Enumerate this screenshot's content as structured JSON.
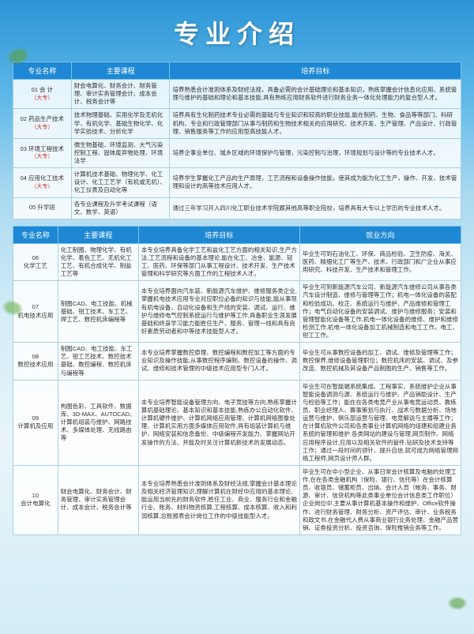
{
  "page_title": "专业介绍",
  "table1": {
    "headers": [
      "专业名称",
      "主要课程",
      "培养目标"
    ],
    "rows": [
      {
        "num": "01",
        "name": "会 计",
        "tag": "（大专）",
        "course": "财会电算化、财务会计、财务管理、审计实务管理会计、成本会计、税务会计等",
        "goal": "培养熟悉会计准则体系及财经法规，具备必需的会计基础理论和基本知识，熟练掌握会计信息化应用、系统管理与维护的基础和理论和基本技能,具有熟练应用财务软件进行财务业务一体化处理能力的复合型人才。"
      },
      {
        "num": "02",
        "name": "药品生产技术",
        "tag": "（大专）",
        "course": "技术物理基础、实用化学及无机化学、有机化学、基础生物化学、化学实验技术、分析化学",
        "goal": "培养具有生化制药技术专业必需的基础与专业知识和较高的职业技能,能在制药、生物、食品等等部门、科研机构、专业和行政管理部门从事与制药和生物技术相关的应用研究、技术开发、生产管理、产品设计、行政管理、销售服务等工作的应用型高技能人才。"
      },
      {
        "num": "03",
        "name": "环境工程技术",
        "tag": "（大专）",
        "course": "微生物基础、环境监测、大气污染控制工程、固体废弃物处理、环境法学",
        "goal": "培养企事业单位、城乡区域的环境保护与管理，污染控制与治理，环境规划与设计等的专业技术人才。"
      },
      {
        "num": "04",
        "name": "应用化工技术",
        "tag": "（大专）",
        "course": "计算机技术基础、物理化学、化工设计、化工工艺学（有机或无机）、化工仪表及自动化等",
        "goal": "培养学生掌握化工产品的生产原理，工艺流程和设备操作技能，使其成为能为化工生产，操作、开发、技术管理和设计的高等技术应用人才。"
      },
      {
        "num": "05",
        "name": "升学班",
        "tag": "",
        "course": "各专业课程及升学考试课程（语文、数学、英语）",
        "goal": "通过三年学习开入四川化工职业技术学院跟其他高等职业院校，培养具有大专以上学历的专业技术人才。"
      }
    ]
  },
  "table2": {
    "headers": [
      "专业名称",
      "主要课程",
      "培养目标",
      "就业方向"
    ],
    "rows": [
      {
        "num": "06",
        "name": "化学工艺",
        "course": "化工制图、物理化学、有机化学、着色工艺、无机化工工艺、有机合成化学、制盐工艺等",
        "goal": "本专业培养具备化学工艺和盐化工艺方面的相关知识,生产方法,工艺流程和设备的基本理论,能在化工、冶金、能源、轻工、医药、环保等部门从事工程设计、技术开发、生产技术管理和科学研究等方面工作的工程技术人才。",
        "job": "毕业生可到石油化工、环保、商品检验、卫生防疫、海关、医药、精细化工厂等生产、技术、行政部门和广企业从事应用研究、科技开发、生产技术和管理工作。"
      },
      {
        "num": "07",
        "name": "机电技术应用",
        "course": "制图CAD、电工技能、机械基础、钳工技术、车工艺、焊工艺、数控机床编程等",
        "goal": "本专业培养面向汽车装、新能源汽车维护、维修服务类企业,掌握机电技术应用专业对应职位必备的知识与技能,能从事现有机电设备、自动化设备和生产线的安装、调试、运行、维护与维修电气控制系统运行与维护等工作,具备职业生涯发展基础和终身学习能力能胜任生产、服务、管理一线和具有良好素质劳动者和中等技术技能型人才。",
        "job": "毕业生可到新能源汽车公司、新能源汽车维修公司从事各类汽车设计制造、维修与管理等工作；机电一体化设备的装配和检验成功、校正、系统运行与维护、产品维修和管理工作；电气自动化设备的安装调试、维护与维修服务；安装和管理智能化设备等工作,机电一体化设备的维修、维护和维修检测工作,机电一体化设备加工机械制造和电工工作。电工、钳工工作。"
      },
      {
        "num": "08",
        "name": "数控技术应用",
        "course": "制图CAD、电工技能、车工艺、钳工艺技术、数控技术基础、数控编程、数控机床与编程等",
        "goal": "本专业培养掌握数控原理、数控编程和数控加工等方面的专业知识及操作技能,从事数控程序编制、数控设备的操作、调试、维修和技术管理的中级技术应用型专门人才。",
        "job": "毕业生可从事数控设备的加工、调试、维修及管理等工作；数控保养,维修设备管理职位；数控机床的安装、调试、及参改造、数控机械及其设备产品制图的生产、销售等工作。"
      },
      {
        "num": "09",
        "name": "计算机及应用",
        "course": "构图色彩、工具软件、数据库、3D-MAX、AUTOCAD、计算机组装与维护、网路技术、多媒体处理、无线路由等",
        "goal": "本专业培养智能设备管理方向、电子竞技等方向,熟练掌握计算机基础理论、基本知识和基本技能,熟练办公自动化软件、计算机硬件维护、计算机网络应用管理、计算机网络图像处理、计算机实用方面多媒体应用软件,具有组装计算机与维护、网络安装和信息备份、中级编程开发能力、掌握网站开发操作的方法、并能及时关注计算机新技术的发展动态。",
        "job": "毕业生可在智能端系统集成、工程事实、系统维护企业从事智能设备调测与源、系统运行与维护、产品销助设计、生产与检验等工作；能在在各类电竞产业从事电竞运动员、教练员、职业经理人、赛事策划与执行、战术与数据分析、场地运营与维护、俱乐部运营与管理、电竞解说与主播等工作；在计算机软件公司和各类事业计算机网络的组建和组建业务系统的管理和维护,各类网站的建设与管理,网页制作、网络应用程序设计,应用以及相关软件的管件,钻研及技术支持等工作；通过一段时间的领针、提升自信,就可成为网络管理网络工程师,网页设计师人群。"
      },
      {
        "num": "10",
        "name": "会计电算化",
        "course": "财会电算化、财务会计、财务管理、审计实务管理会计、成本会计、税务会计等",
        "goal": "本专业培养熟悉会计准则体系及财经法规,掌握会计基本理论及相关经济管理知识,理解计算机在财经中应用的基本理论,能运用当前先的财务软件,胜任工业、商业、服务行业和金融行业、账务、材料物资核算,工程核算、成本核算、收入和利润核算,总账报表会计岗位工作的中级技能型人才。",
        "job": "毕业生可在中小型企业、从事日常会计核算及电脑的处理工作,在在各类金融机构（保险、银行、信托等）在会计核算员、收银员、储蓄柜员、出纳、会计人员（帐务、事务、财源、审计、信贷机构等此类事业单位会计信息类工作职位）企业岗位中,主要从事计算机基本操作和维护、Office软件操作、进行财务管理、财务分析、资产评估、审计、业务税务和政文书,在金融代入费从事商业银行业务处理、金融产品营销、证券投资分析、投资咨询、保险推销业务等工作。"
      }
    ]
  },
  "styling": {
    "header_bg": "#1e88d4",
    "border_color": "#a8d0e8",
    "tag_color": "#d32f2f",
    "bg_gradient": [
      "#2d94d6",
      "#5cb8e8",
      "#a8d8f0",
      "#d4edf7",
      "#e8f4fa"
    ]
  }
}
